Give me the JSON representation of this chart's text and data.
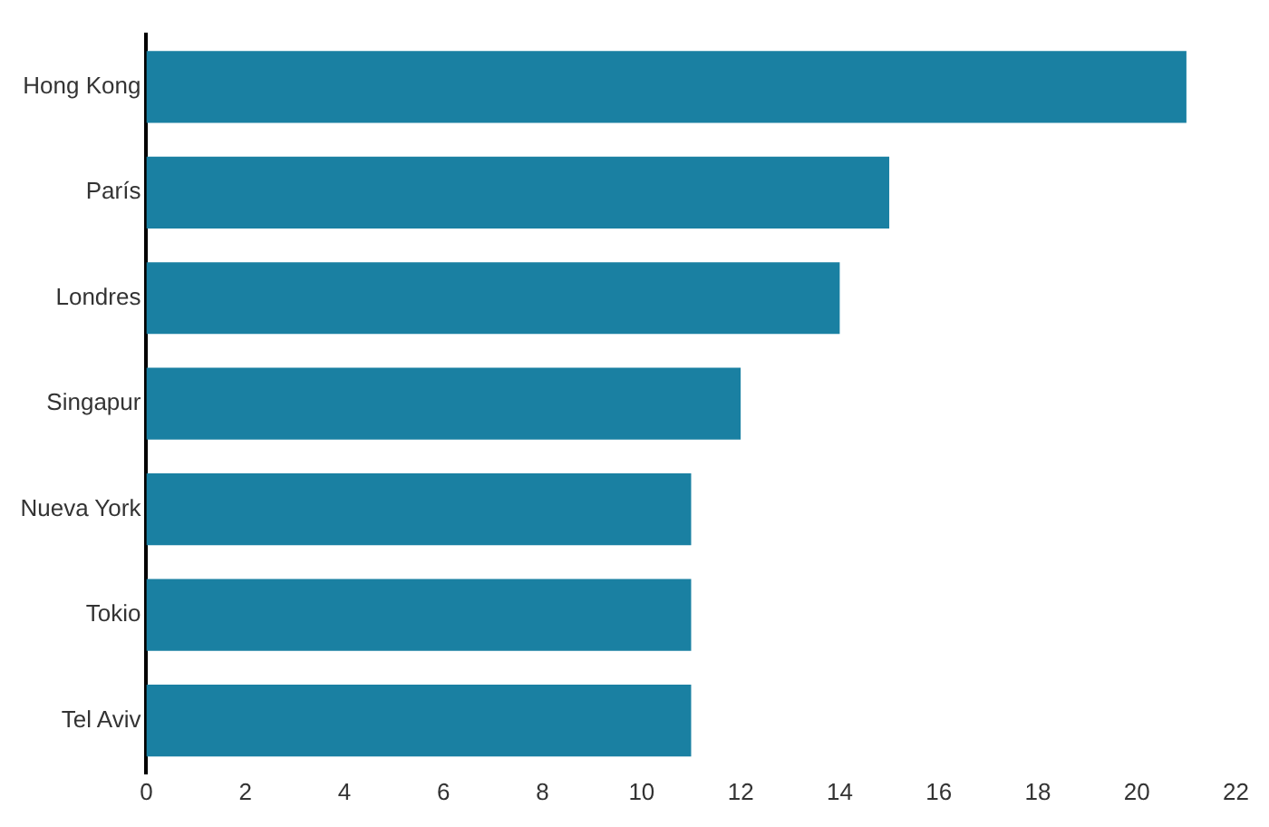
{
  "chart_data": {
    "type": "bar",
    "orientation": "horizontal",
    "categories": [
      "Hong Kong",
      "París",
      "Londres",
      "Singapur",
      "Nueva York",
      "Tokio",
      "Tel Aviv"
    ],
    "values": [
      21,
      15,
      14,
      12,
      11,
      11,
      11
    ],
    "color": "#1a80a2",
    "xlim": [
      0,
      22
    ],
    "xticks": [
      0,
      2,
      4,
      6,
      8,
      10,
      12,
      14,
      16,
      18,
      20,
      22
    ],
    "grid": false,
    "legend": false
  }
}
